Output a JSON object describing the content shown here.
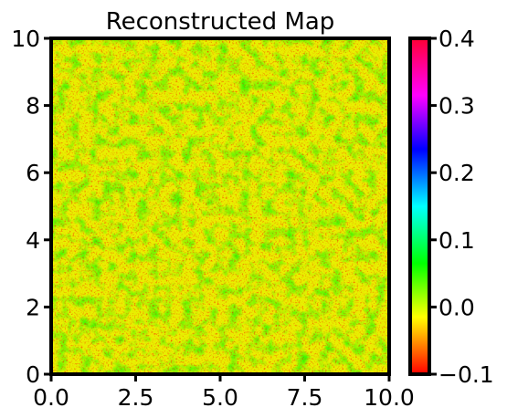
{
  "chart_data": {
    "type": "heatmap",
    "title": "Reconstructed Map",
    "xlabel": "",
    "ylabel": "",
    "xlim": [
      0.0,
      10.0
    ],
    "ylim": [
      0,
      10
    ],
    "x_ticks": [
      "0.0",
      "2.5",
      "5.0",
      "7.5",
      "10.0"
    ],
    "y_ticks": [
      "0",
      "2",
      "4",
      "6",
      "8",
      "10"
    ],
    "grid": false,
    "colorbar": {
      "range": [
        -0.1,
        0.4
      ],
      "ticks": [
        "−0.1",
        "0.0",
        "0.1",
        "0.2",
        "0.3",
        "0.4"
      ],
      "colormap": "hsv",
      "colors": [
        "#ff0000",
        "#ffff00",
        "#00ff00",
        "#00ffff",
        "#0000ff",
        "#ff00ff",
        "#ff0033"
      ]
    },
    "field_description_values": {
      "dominant_value_range": [
        -0.1,
        0.05
      ],
      "mean_value": 0.01
    }
  }
}
